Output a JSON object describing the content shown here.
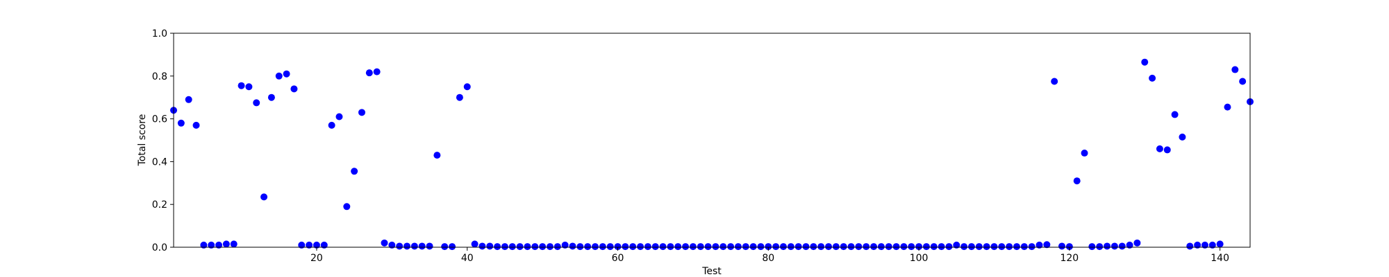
{
  "chart_data": {
    "type": "scatter",
    "title": "",
    "xlabel": "Test",
    "ylabel": "Total score",
    "xlim": [
      1,
      144
    ],
    "ylim": [
      0.0,
      1.0
    ],
    "xticks": [
      20,
      40,
      60,
      80,
      100,
      120,
      140
    ],
    "yticks": [
      0.0,
      0.2,
      0.4,
      0.6,
      0.8,
      1.0
    ],
    "xtick_labels": [
      "20",
      "40",
      "60",
      "80",
      "100",
      "120",
      "140"
    ],
    "ytick_labels": [
      "0.0",
      "0.2",
      "0.4",
      "0.6",
      "0.8",
      "1.0"
    ],
    "grid": false,
    "legend": "none",
    "marker_color": "#0000ff",
    "x": [
      1,
      2,
      3,
      4,
      5,
      6,
      7,
      8,
      9,
      10,
      11,
      12,
      13,
      14,
      15,
      16,
      17,
      18,
      19,
      20,
      21,
      22,
      23,
      24,
      25,
      26,
      27,
      28,
      29,
      30,
      31,
      32,
      33,
      34,
      35,
      36,
      37,
      38,
      39,
      40,
      41,
      42,
      43,
      44,
      45,
      46,
      47,
      48,
      49,
      50,
      51,
      52,
      53,
      54,
      55,
      56,
      57,
      58,
      59,
      60,
      61,
      62,
      63,
      64,
      65,
      66,
      67,
      68,
      69,
      70,
      71,
      72,
      73,
      74,
      75,
      76,
      77,
      78,
      79,
      80,
      81,
      82,
      83,
      84,
      85,
      86,
      87,
      88,
      89,
      90,
      91,
      92,
      93,
      94,
      95,
      96,
      97,
      98,
      99,
      100,
      101,
      102,
      103,
      104,
      105,
      106,
      107,
      108,
      109,
      110,
      111,
      112,
      113,
      114,
      115,
      116,
      117,
      118,
      119,
      120,
      121,
      122,
      123,
      124,
      125,
      126,
      127,
      128,
      129,
      130,
      131,
      132,
      133,
      134,
      135,
      136,
      137,
      138,
      139,
      140,
      141,
      142,
      143,
      144
    ],
    "y": [
      0.64,
      0.58,
      0.69,
      0.57,
      0.01,
      0.01,
      0.01,
      0.015,
      0.015,
      0.755,
      0.75,
      0.675,
      0.235,
      0.7,
      0.8,
      0.81,
      0.74,
      0.01,
      0.01,
      0.01,
      0.01,
      0.57,
      0.61,
      0.19,
      0.355,
      0.63,
      0.815,
      0.82,
      0.02,
      0.01,
      0.005,
      0.005,
      0.005,
      0.005,
      0.005,
      0.43,
      0.003,
      0.003,
      0.7,
      0.75,
      0.015,
      0.005,
      0.005,
      0.003,
      0.003,
      0.003,
      0.003,
      0.003,
      0.003,
      0.003,
      0.003,
      0.003,
      0.01,
      0.005,
      0.003,
      0.003,
      0.003,
      0.003,
      0.003,
      0.003,
      0.003,
      0.003,
      0.003,
      0.003,
      0.003,
      0.003,
      0.003,
      0.003,
      0.003,
      0.003,
      0.003,
      0.003,
      0.003,
      0.003,
      0.003,
      0.003,
      0.003,
      0.003,
      0.003,
      0.003,
      0.003,
      0.003,
      0.003,
      0.003,
      0.003,
      0.003,
      0.003,
      0.003,
      0.003,
      0.003,
      0.003,
      0.003,
      0.003,
      0.003,
      0.003,
      0.003,
      0.003,
      0.003,
      0.003,
      0.003,
      0.003,
      0.003,
      0.003,
      0.003,
      0.01,
      0.003,
      0.003,
      0.003,
      0.003,
      0.003,
      0.003,
      0.003,
      0.003,
      0.003,
      0.003,
      0.01,
      0.012,
      0.775,
      0.005,
      0.003,
      0.31,
      0.44,
      0.003,
      0.003,
      0.005,
      0.005,
      0.005,
      0.01,
      0.02,
      0.865,
      0.79,
      0.46,
      0.455,
      0.62,
      0.515,
      0.005,
      0.01,
      0.01,
      0.01,
      0.015,
      0.655,
      0.83,
      0.775,
      0.68
    ]
  }
}
